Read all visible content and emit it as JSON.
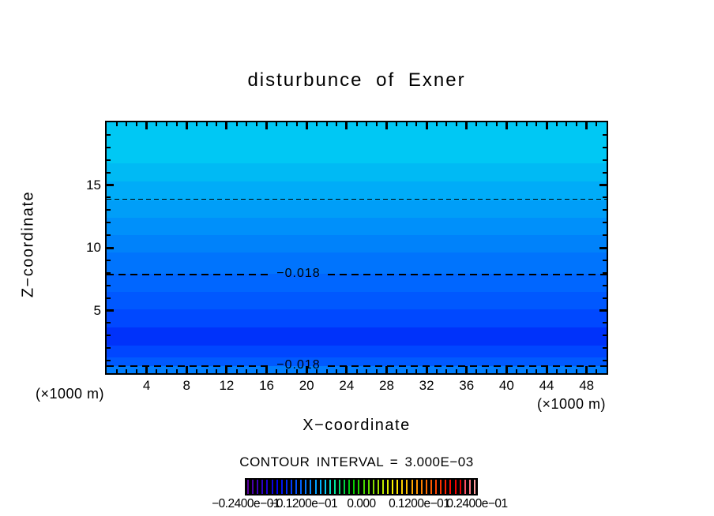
{
  "title": "disturbunce of Exner",
  "plot": {
    "x_axis": {
      "label": "X−coordinate",
      "unit": "(×1000 m)",
      "range": [
        0,
        50
      ],
      "minor_step": 1,
      "major_step": 4,
      "tick_labels": [
        4,
        8,
        12,
        16,
        20,
        24,
        28,
        32,
        36,
        40,
        44,
        48
      ]
    },
    "y_axis": {
      "label": "Z−coordinate",
      "unit": "(×1000 m)",
      "range": [
        0,
        20
      ],
      "minor_step": 1,
      "major_step": 5,
      "tick_labels": [
        5,
        10,
        15
      ]
    }
  },
  "contour_info": "CONTOUR INTERVAL = 3.000E−03",
  "colorbar": {
    "labels": [
      "−0.2400e−01",
      "−0.1200e−01",
      "0.000",
      "0.1200e−01",
      "0.2400e−01"
    ],
    "stripes": [
      "#5A00A0",
      "#4B00AD",
      "#3C00BA",
      "#2D00C8",
      "#1E00D5",
      "#0F00E2",
      "#0000F0",
      "#0014F5",
      "#0028FA",
      "#003CFF",
      "#0050FF",
      "#0064FF",
      "#0078FF",
      "#008CFF",
      "#00A0FF",
      "#00B4FF",
      "#00C8F5",
      "#00DCC8",
      "#00E69B",
      "#00DC6E",
      "#00D241",
      "#00C814",
      "#0ACD00",
      "#28D200",
      "#46D700",
      "#64DC00",
      "#82E100",
      "#A0E600",
      "#BEEB00",
      "#DCF000",
      "#FAF500",
      "#FFE600",
      "#FFD200",
      "#FFBE00",
      "#FFAA00",
      "#FF9600",
      "#FF8200",
      "#FF6E00",
      "#FF5A00",
      "#FF4600",
      "#FF3200",
      "#FF1E00",
      "#FF0A00",
      "#F50000",
      "#E60000",
      "#FF5064",
      "#FF7882",
      "#FFA0A0"
    ]
  },
  "chart_data": {
    "type": "heatmap",
    "subtype": "filled-contour",
    "title": "disturbunce of Exner",
    "xlabel": "X−coordinate (×1000 m)",
    "ylabel": "Z−coordinate (×1000 m)",
    "x_range": [
      0,
      50
    ],
    "y_range": [
      0,
      20
    ],
    "grid": false,
    "contour_interval": 0.003,
    "contour_lines": [
      {
        "z": 13.9,
        "label": "",
        "style": "thin-dashed"
      },
      {
        "z": 7.92,
        "label": "−0.018",
        "style": "thick-dashed"
      },
      {
        "z": 0.63,
        "label": "−0.018",
        "style": "thick-dashed"
      }
    ],
    "bands": [
      {
        "z_top": 20.0,
        "z_bottom": 16.7,
        "color": "#00C8F4"
      },
      {
        "z_top": 16.7,
        "z_bottom": 15.3,
        "color": "#00BAF4"
      },
      {
        "z_top": 15.3,
        "z_bottom": 13.8,
        "color": "#00ACF8"
      },
      {
        "z_top": 13.8,
        "z_bottom": 12.4,
        "color": "#009EF8"
      },
      {
        "z_top": 12.4,
        "z_bottom": 11.0,
        "color": "#0090FA"
      },
      {
        "z_top": 11.0,
        "z_bottom": 9.6,
        "color": "#0082FA"
      },
      {
        "z_top": 9.6,
        "z_bottom": 7.92,
        "color": "#0074FD"
      },
      {
        "z_top": 7.92,
        "z_bottom": 6.5,
        "color": "#0066FF"
      },
      {
        "z_top": 6.5,
        "z_bottom": 5.1,
        "color": "#0058FF"
      },
      {
        "z_top": 5.1,
        "z_bottom": 3.65,
        "color": "#0048FF"
      },
      {
        "z_top": 3.65,
        "z_bottom": 2.2,
        "color": "#0032FA"
      },
      {
        "z_top": 2.2,
        "z_bottom": 1.26,
        "color": "#0046FF"
      },
      {
        "z_top": 1.26,
        "z_bottom": 0.57,
        "color": "#005AFF"
      },
      {
        "z_top": 0.57,
        "z_bottom": 0.0,
        "color": "#007EFF"
      }
    ]
  }
}
